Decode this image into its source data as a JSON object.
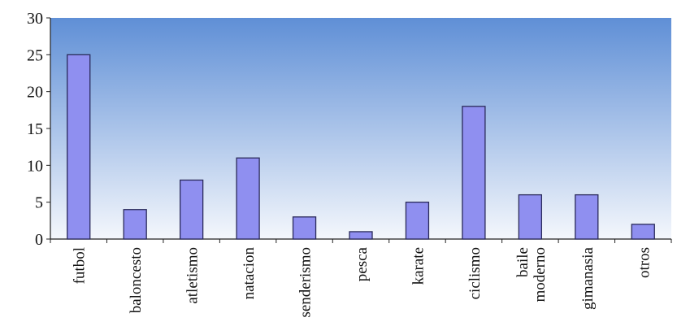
{
  "chart_data": {
    "type": "bar",
    "title": "",
    "xlabel": "",
    "ylabel": "",
    "categories": [
      "futbol",
      "baloncesto",
      "atletismo",
      "natacion",
      "senderismo",
      "pesca",
      "karate",
      "ciclismo",
      "baile moderno",
      "gimanasia",
      "otros"
    ],
    "category_lines": [
      [
        "futbol"
      ],
      [
        "baloncesto"
      ],
      [
        "atletismo"
      ],
      [
        "natacion"
      ],
      [
        "senderismo"
      ],
      [
        "pesca"
      ],
      [
        "karate"
      ],
      [
        "ciclismo"
      ],
      [
        "baile",
        "moderno"
      ],
      [
        "gimanasia"
      ],
      [
        "otros"
      ]
    ],
    "values": [
      25,
      4,
      8,
      11,
      3,
      1,
      5,
      18,
      6,
      6,
      2
    ],
    "ylim": [
      0,
      30
    ],
    "yticks": [
      0,
      5,
      10,
      15,
      20,
      25,
      30
    ],
    "grid": false,
    "legend": "none",
    "colors": {
      "bar_fill": "#8f8ff0",
      "bar_stroke": "#2a2a5a",
      "plot_bg_top": "#5f8fd6",
      "plot_bg_bottom": "#f4f7fc",
      "axis": "#222222"
    }
  }
}
